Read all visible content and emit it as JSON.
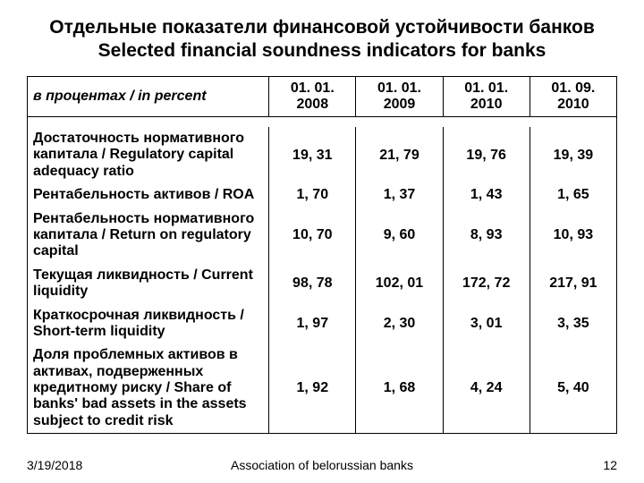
{
  "title_ru": "Отдельные показатели финансовой устойчивости банков",
  "title_en": "Selected financial soundness indicators for  banks",
  "header_italic": "в процентах /  in percent",
  "columns": [
    "01. 01. 2008",
    "01. 01. 2009",
    "01. 01. 2010",
    "01. 09. 2010"
  ],
  "rows": [
    {
      "label": "Достаточность нормативного капитала / Regulatory capital adequacy ratio",
      "vals": [
        "19, 31",
        "21, 79",
        "19, 76",
        "19, 39"
      ]
    },
    {
      "label": "Рентабельность активов / ROA",
      "vals": [
        "1, 70",
        "1, 37",
        "1, 43",
        "1, 65"
      ]
    },
    {
      "label": "Рентабельность нормативного капитала / Return on regulatory capital",
      "vals": [
        "10, 70",
        "9, 60",
        "8, 93",
        "10, 93"
      ]
    },
    {
      "label": "Текущая ликвидность / Current liquidity",
      "vals": [
        "98, 78",
        "102, 01",
        "172, 72",
        "217, 91"
      ]
    },
    {
      "label": "Краткосрочная ликвидность / Short-term liquidity",
      "vals": [
        "1, 97",
        "2, 30",
        "3, 01",
        "3, 35"
      ]
    },
    {
      "label": "Доля проблемных активов в активах, подверженных кредитному риску / Share of banks' bad assets in the assets subject to credit risk",
      "vals": [
        "1, 92",
        "1, 68",
        "4, 24",
        "5, 40"
      ]
    }
  ],
  "footer_date": "3/19/2018",
  "footer_center": "Association of belorussian banks",
  "footer_page": "12"
}
